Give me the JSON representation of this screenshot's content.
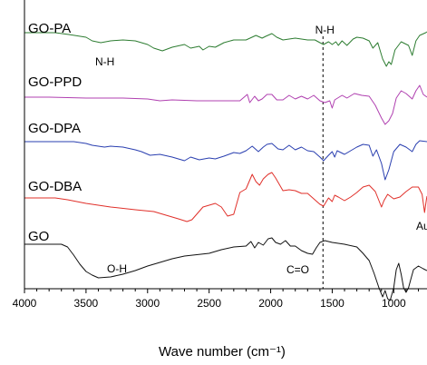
{
  "chart_data": {
    "type": "line",
    "title": "",
    "xlabel": "Wave number (cm⁻¹)",
    "ylabel": "",
    "xlim": [
      4000,
      730
    ],
    "x_reversed": true,
    "y_ticks_shown": false,
    "grid": false,
    "legend": "none",
    "x_ticks": [
      "4000",
      "3500",
      "3000",
      "2500",
      "2000",
      "1500",
      "1000"
    ],
    "x_tick_values": [
      4000,
      3500,
      3000,
      2500,
      2000,
      1500,
      1000
    ],
    "reference_line": {
      "x": 1575,
      "label": "N-H",
      "style": "dashed"
    },
    "y_unit_note": "stacked spectra, arbitrary units (larger = higher on plot)",
    "series": [
      {
        "name": "GO-PA",
        "color": "#2e7d32",
        "points": [
          [
            4000,
            89
          ],
          [
            3750,
            89
          ],
          [
            3640,
            87
          ],
          [
            3500,
            84
          ],
          [
            3450,
            80
          ],
          [
            3380,
            78
          ],
          [
            3300,
            80
          ],
          [
            3200,
            81
          ],
          [
            3100,
            80
          ],
          [
            3000,
            76
          ],
          [
            2950,
            72
          ],
          [
            2880,
            69
          ],
          [
            2800,
            73
          ],
          [
            2700,
            76
          ],
          [
            2650,
            72
          ],
          [
            2580,
            74
          ],
          [
            2550,
            70
          ],
          [
            2500,
            74
          ],
          [
            2450,
            73
          ],
          [
            2380,
            78
          ],
          [
            2300,
            81
          ],
          [
            2200,
            81
          ],
          [
            2120,
            86
          ],
          [
            2070,
            83
          ],
          [
            2040,
            85
          ],
          [
            1990,
            88
          ],
          [
            1950,
            84
          ],
          [
            1900,
            81
          ],
          [
            1800,
            83
          ],
          [
            1700,
            81
          ],
          [
            1640,
            81
          ],
          [
            1600,
            78
          ],
          [
            1570,
            76
          ],
          [
            1530,
            79
          ],
          [
            1500,
            76
          ],
          [
            1470,
            79
          ],
          [
            1450,
            75
          ],
          [
            1420,
            80
          ],
          [
            1380,
            75
          ],
          [
            1330,
            82
          ],
          [
            1300,
            84
          ],
          [
            1250,
            83
          ],
          [
            1200,
            80
          ],
          [
            1170,
            72
          ],
          [
            1130,
            78
          ],
          [
            1090,
            60
          ],
          [
            1060,
            52
          ],
          [
            1040,
            57
          ],
          [
            1020,
            54
          ],
          [
            990,
            70
          ],
          [
            940,
            79
          ],
          [
            880,
            75
          ],
          [
            850,
            64
          ],
          [
            820,
            80
          ],
          [
            790,
            86
          ],
          [
            740,
            89
          ],
          [
            730,
            90
          ]
        ]
      },
      {
        "name": "GO-PPD",
        "color": "#b040b0",
        "points": [
          [
            4000,
            53
          ],
          [
            3800,
            53
          ],
          [
            3500,
            52
          ],
          [
            3200,
            52
          ],
          [
            3000,
            51
          ],
          [
            2900,
            49
          ],
          [
            2800,
            50
          ],
          [
            2600,
            49
          ],
          [
            2400,
            49
          ],
          [
            2250,
            49
          ],
          [
            2190,
            56
          ],
          [
            2170,
            47
          ],
          [
            2130,
            54
          ],
          [
            2100,
            49
          ],
          [
            2070,
            51
          ],
          [
            2030,
            56
          ],
          [
            1990,
            56
          ],
          [
            1950,
            50
          ],
          [
            1900,
            50
          ],
          [
            1850,
            55
          ],
          [
            1800,
            51
          ],
          [
            1750,
            54
          ],
          [
            1700,
            51
          ],
          [
            1650,
            55
          ],
          [
            1600,
            49
          ],
          [
            1560,
            47
          ],
          [
            1520,
            49
          ],
          [
            1500,
            41
          ],
          [
            1480,
            50
          ],
          [
            1420,
            55
          ],
          [
            1380,
            52
          ],
          [
            1320,
            57
          ],
          [
            1260,
            55
          ],
          [
            1200,
            54
          ],
          [
            1150,
            44
          ],
          [
            1100,
            30
          ],
          [
            1070,
            23
          ],
          [
            1040,
            27
          ],
          [
            1010,
            35
          ],
          [
            980,
            52
          ],
          [
            940,
            60
          ],
          [
            900,
            57
          ],
          [
            850,
            51
          ],
          [
            820,
            60
          ],
          [
            790,
            66
          ],
          [
            760,
            56
          ],
          [
            730,
            53
          ]
        ]
      },
      {
        "name": "GO-DPA",
        "color": "#2a3fb0",
        "points": [
          [
            4000,
            19
          ],
          [
            3800,
            19
          ],
          [
            3600,
            19
          ],
          [
            3500,
            17
          ],
          [
            3450,
            15
          ],
          [
            3400,
            14
          ],
          [
            3350,
            13
          ],
          [
            3300,
            14
          ],
          [
            3200,
            13
          ],
          [
            3100,
            10
          ],
          [
            3050,
            8
          ],
          [
            2980,
            4
          ],
          [
            2900,
            5
          ],
          [
            2800,
            2
          ],
          [
            2700,
            -2
          ],
          [
            2650,
            2
          ],
          [
            2580,
            -1
          ],
          [
            2500,
            1
          ],
          [
            2450,
            0
          ],
          [
            2380,
            3
          ],
          [
            2300,
            7
          ],
          [
            2250,
            6
          ],
          [
            2200,
            9
          ],
          [
            2150,
            14
          ],
          [
            2100,
            8
          ],
          [
            2060,
            13
          ],
          [
            2030,
            16
          ],
          [
            1990,
            17
          ],
          [
            1940,
            11
          ],
          [
            1900,
            10
          ],
          [
            1850,
            15
          ],
          [
            1800,
            10
          ],
          [
            1750,
            13
          ],
          [
            1700,
            9
          ],
          [
            1650,
            8
          ],
          [
            1600,
            2
          ],
          [
            1570,
            -2
          ],
          [
            1530,
            4
          ],
          [
            1500,
            8
          ],
          [
            1480,
            2
          ],
          [
            1460,
            9
          ],
          [
            1400,
            5
          ],
          [
            1350,
            9
          ],
          [
            1300,
            13
          ],
          [
            1250,
            16
          ],
          [
            1200,
            15
          ],
          [
            1170,
            3
          ],
          [
            1140,
            10
          ],
          [
            1100,
            -5
          ],
          [
            1070,
            -23
          ],
          [
            1040,
            -12
          ],
          [
            1000,
            8
          ],
          [
            950,
            16
          ],
          [
            900,
            13
          ],
          [
            850,
            8
          ],
          [
            820,
            16
          ],
          [
            790,
            20
          ],
          [
            730,
            19
          ]
        ]
      },
      {
        "name": "GO-DBA",
        "color": "#e0302a",
        "points": [
          [
            4000,
            -48
          ],
          [
            3750,
            -48
          ],
          [
            3650,
            -50
          ],
          [
            3500,
            -54
          ],
          [
            3300,
            -58
          ],
          [
            3100,
            -61
          ],
          [
            2950,
            -63
          ],
          [
            2850,
            -67
          ],
          [
            2750,
            -71
          ],
          [
            2680,
            -74
          ],
          [
            2640,
            -72
          ],
          [
            2550,
            -58
          ],
          [
            2450,
            -54
          ],
          [
            2400,
            -58
          ],
          [
            2350,
            -68
          ],
          [
            2300,
            -66
          ],
          [
            2250,
            -42
          ],
          [
            2200,
            -38
          ],
          [
            2150,
            -22
          ],
          [
            2120,
            -30
          ],
          [
            2090,
            -34
          ],
          [
            2060,
            -27
          ],
          [
            2020,
            -22
          ],
          [
            1990,
            -20
          ],
          [
            1960,
            -26
          ],
          [
            1900,
            -40
          ],
          [
            1850,
            -39
          ],
          [
            1800,
            -40
          ],
          [
            1750,
            -43
          ],
          [
            1700,
            -43
          ],
          [
            1650,
            -49
          ],
          [
            1600,
            -55
          ],
          [
            1570,
            -57
          ],
          [
            1530,
            -48
          ],
          [
            1500,
            -52
          ],
          [
            1480,
            -45
          ],
          [
            1450,
            -47
          ],
          [
            1400,
            -51
          ],
          [
            1350,
            -47
          ],
          [
            1300,
            -42
          ],
          [
            1250,
            -36
          ],
          [
            1200,
            -34
          ],
          [
            1150,
            -41
          ],
          [
            1100,
            -58
          ],
          [
            1080,
            -51
          ],
          [
            1050,
            -44
          ],
          [
            1000,
            -49
          ],
          [
            950,
            -47
          ],
          [
            900,
            -41
          ],
          [
            850,
            -36
          ],
          [
            800,
            -36
          ],
          [
            770,
            -44
          ],
          [
            750,
            -64
          ],
          [
            735,
            -50
          ],
          [
            730,
            -46
          ]
        ]
      },
      {
        "name": "GO",
        "color": "#111111",
        "points": [
          [
            4000,
            -102
          ],
          [
            3700,
            -102
          ],
          [
            3650,
            -105
          ],
          [
            3600,
            -114
          ],
          [
            3550,
            -124
          ],
          [
            3500,
            -132
          ],
          [
            3450,
            -136
          ],
          [
            3400,
            -139
          ],
          [
            3300,
            -138
          ],
          [
            3200,
            -135
          ],
          [
            3100,
            -131
          ],
          [
            3000,
            -126
          ],
          [
            2900,
            -122
          ],
          [
            2800,
            -118
          ],
          [
            2700,
            -115
          ],
          [
            2500,
            -112
          ],
          [
            2400,
            -108
          ],
          [
            2300,
            -105
          ],
          [
            2200,
            -104
          ],
          [
            2160,
            -99
          ],
          [
            2130,
            -106
          ],
          [
            2100,
            -100
          ],
          [
            2060,
            -103
          ],
          [
            2020,
            -96
          ],
          [
            1990,
            -95
          ],
          [
            1960,
            -100
          ],
          [
            1920,
            -102
          ],
          [
            1880,
            -98
          ],
          [
            1840,
            -104
          ],
          [
            1800,
            -104
          ],
          [
            1750,
            -109
          ],
          [
            1700,
            -112
          ],
          [
            1660,
            -113
          ],
          [
            1630,
            -106
          ],
          [
            1600,
            -100
          ],
          [
            1560,
            -98
          ],
          [
            1500,
            -100
          ],
          [
            1400,
            -102
          ],
          [
            1300,
            -105
          ],
          [
            1250,
            -112
          ],
          [
            1200,
            -120
          ],
          [
            1160,
            -134
          ],
          [
            1120,
            -150
          ],
          [
            1090,
            -160
          ],
          [
            1070,
            -153
          ],
          [
            1050,
            -162
          ],
          [
            1030,
            -164
          ],
          [
            1000,
            -150
          ],
          [
            980,
            -130
          ],
          [
            960,
            -123
          ],
          [
            940,
            -135
          ],
          [
            920,
            -150
          ],
          [
            900,
            -155
          ],
          [
            880,
            -150
          ],
          [
            860,
            -140
          ],
          [
            840,
            -130
          ],
          [
            800,
            -126
          ],
          [
            760,
            -129
          ],
          [
            730,
            -131
          ]
        ]
      }
    ],
    "labels": [
      {
        "key": "GO-PA",
        "text": "GO-PA"
      },
      {
        "key": "GO-PPD",
        "text": "GO-PPD"
      },
      {
        "key": "GO-DPA",
        "text": "GO-DPA"
      },
      {
        "key": "GO-DBA",
        "text": "GO-DBA"
      },
      {
        "key": "GO",
        "text": "GO"
      }
    ],
    "annotations": [
      {
        "key": "nh-pa",
        "text": "N-H"
      },
      {
        "key": "oh-go",
        "text": "O-H"
      },
      {
        "key": "co-go",
        "text": "C=O"
      },
      {
        "key": "au-dba",
        "text": "Au"
      }
    ]
  }
}
